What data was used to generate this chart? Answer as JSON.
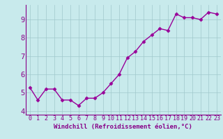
{
  "x_values": [
    0,
    1,
    2,
    3,
    4,
    5,
    6,
    7,
    8,
    9,
    10,
    11,
    12,
    13,
    14,
    15,
    16,
    17,
    18,
    19,
    20,
    21,
    22,
    23
  ],
  "y_values": [
    5.3,
    4.6,
    5.2,
    5.2,
    4.6,
    4.6,
    4.3,
    4.7,
    4.7,
    5.0,
    5.5,
    6.0,
    6.9,
    7.25,
    7.8,
    8.15,
    8.5,
    8.4,
    9.3,
    9.1,
    9.1,
    9.0,
    9.4,
    9.3
  ],
  "line_color": "#990099",
  "marker": "D",
  "marker_size": 2.5,
  "line_width": 1.0,
  "background_color": "#c8eaec",
  "grid_color": "#a0c8cc",
  "xlabel": "Windchill (Refroidissement éolien,°C)",
  "xlabel_color": "#880088",
  "tick_color": "#880088",
  "xlim": [
    -0.5,
    23.5
  ],
  "ylim": [
    3.8,
    9.8
  ],
  "yticks": [
    4,
    5,
    6,
    7,
    8,
    9
  ],
  "xticks": [
    0,
    1,
    2,
    3,
    4,
    5,
    6,
    7,
    8,
    9,
    10,
    11,
    12,
    13,
    14,
    15,
    16,
    17,
    18,
    19,
    20,
    21,
    22,
    23
  ],
  "tick_fontsize": 6.0,
  "ytick_fontsize": 7.5,
  "xlabel_fontsize": 6.5
}
